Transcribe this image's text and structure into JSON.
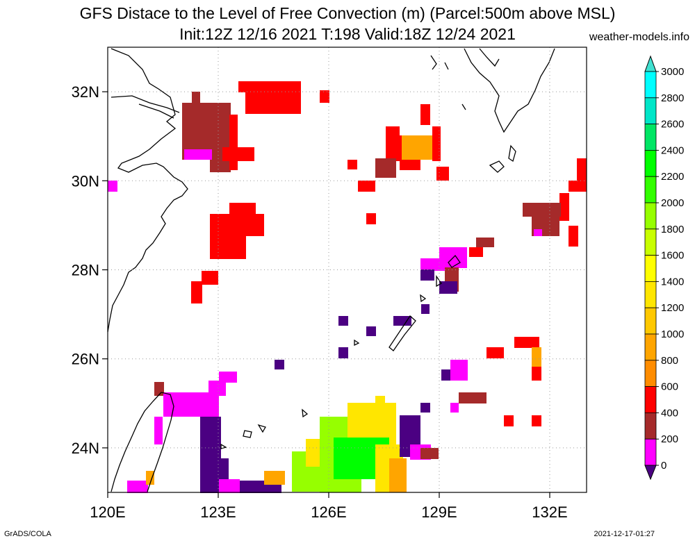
{
  "title": {
    "line1": "GFS Distace to the Level of Free Convection (m) (Parcel:500m above MSL)",
    "line2": "Init:12Z 12/16 2021 T:198 Valid:18Z 12/24 2021",
    "credit": "weather-models.info"
  },
  "footer": {
    "left": "GrADS/COLA",
    "right": "2021-12-17-01:27"
  },
  "map": {
    "lon_range": [
      120,
      133
    ],
    "lat_range": [
      23,
      33
    ],
    "lon_ticks": [
      {
        "value": 120,
        "label": "120E"
      },
      {
        "value": 123,
        "label": "123E"
      },
      {
        "value": 126,
        "label": "126E"
      },
      {
        "value": 129,
        "label": "129E"
      },
      {
        "value": 132,
        "label": "132E"
      }
    ],
    "lat_ticks": [
      {
        "value": 24,
        "label": "24N"
      },
      {
        "value": 26,
        "label": "26N"
      },
      {
        "value": 28,
        "label": "28N"
      },
      {
        "value": 30,
        "label": "30N"
      },
      {
        "value": 32,
        "label": "32N"
      }
    ],
    "grid": "dotted"
  },
  "colorbar": {
    "levels": [
      "0",
      "200",
      "400",
      "600",
      "800",
      "1000",
      "1200",
      "1400",
      "1600",
      "1800",
      "2000",
      "2200",
      "2400",
      "2600",
      "2800",
      "3000"
    ],
    "colors": [
      "#4b0082",
      "#ff00ff",
      "#a52a2a",
      "#ff0000",
      "#ff8c00",
      "#ffa500",
      "#ffc800",
      "#ffe600",
      "#ffff00",
      "#c8ff00",
      "#96ff00",
      "#32ff00",
      "#00ff00",
      "#00e664",
      "#00e6c8",
      "#00ffff"
    ],
    "under_color": "#4b0082",
    "over_color": "#40e0d0"
  },
  "colors": {
    "purple": "#4b0082",
    "magenta": "#ff00ff",
    "brown": "#a52a2a",
    "red": "#ff0000",
    "orange": "#ffa500",
    "yellow": "#ffe600",
    "lime": "#96ff00",
    "green": "#00ff00"
  }
}
